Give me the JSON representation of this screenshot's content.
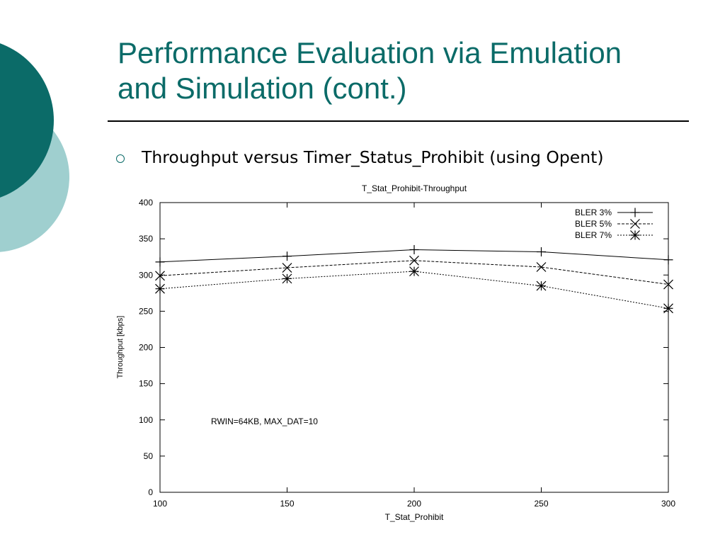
{
  "slide": {
    "title_line1": "Performance Evaluation via Emulation",
    "title_line2": "and Simulation (cont.)",
    "bullet": "Throughput versus Timer_Status_Prohibit (using Opent)"
  },
  "colors": {
    "accent": "#0b6b68",
    "accent_light": "#9fcfcf"
  },
  "chart_data": {
    "type": "line",
    "title": "T_Stat_Prohibit-Throughput",
    "xlabel": "T_Stat_Prohibit",
    "ylabel": "Throughput [kbps]",
    "x": [
      100,
      150,
      200,
      250,
      300
    ],
    "xlim": [
      100,
      300
    ],
    "ylim": [
      0,
      400
    ],
    "xticks": [
      100,
      150,
      200,
      250,
      300
    ],
    "yticks": [
      0,
      50,
      100,
      150,
      200,
      250,
      300,
      350,
      400
    ],
    "grid": false,
    "legend": "top-right",
    "annotation": "RWIN=64KB, MAX_DAT=10",
    "series": [
      {
        "name": "BLER 3%",
        "values": [
          318,
          326,
          335,
          332,
          321
        ],
        "marker": "plus",
        "dash": "solid"
      },
      {
        "name": "BLER 5%",
        "values": [
          299,
          310,
          320,
          311,
          287
        ],
        "marker": "x",
        "dash": "dashed"
      },
      {
        "name": "BLER 7%",
        "values": [
          281,
          295,
          305,
          285,
          254
        ],
        "marker": "star",
        "dash": "dotted"
      }
    ]
  }
}
